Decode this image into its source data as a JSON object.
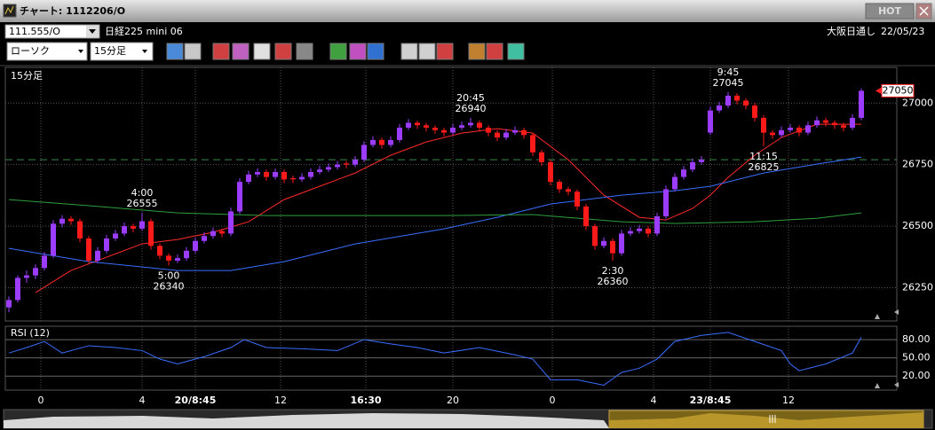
{
  "window": {
    "title": "チャート: 1112206/O",
    "hot_button": "HOT"
  },
  "symbol_bar": {
    "symbol": "111.555/O",
    "name": "日経225 mini 06",
    "session": "大阪日通し",
    "date": "22/05/23"
  },
  "toolbar": {
    "chart_type": "ローソク",
    "timeframe": "15分足"
  },
  "chart": {
    "type": "candlestick",
    "label": "15分足",
    "grid": true,
    "xlim": [
      -0.4,
      100
    ],
    "ylim": [
      26115,
      27145
    ],
    "yticks": [
      27000,
      26750,
      26500,
      26250
    ],
    "xticks": [
      {
        "value": 3.6,
        "label": "0"
      },
      {
        "value": 15,
        "label": "4"
      },
      {
        "value": 21,
        "label": "20/8:45"
      },
      {
        "value": 30.6,
        "label": "12"
      },
      {
        "value": 40.2,
        "label": "16:30"
      },
      {
        "value": 50,
        "label": "20"
      },
      {
        "value": 61.2,
        "label": "0"
      },
      {
        "value": 72.6,
        "label": "4"
      },
      {
        "value": 79,
        "label": "23/8:45"
      },
      {
        "value": 87.8,
        "label": "12"
      }
    ],
    "up_color": "#9b3cff",
    "down_color": "#ff1a1a",
    "candles": [
      [
        26170,
        26215,
        26150,
        26200
      ],
      [
        26200,
        26300,
        26190,
        26290
      ],
      [
        26290,
        26320,
        26270,
        26300
      ],
      [
        26300,
        26345,
        26285,
        26330
      ],
      [
        26330,
        26395,
        26320,
        26380
      ],
      [
        26380,
        26525,
        26370,
        26510
      ],
      [
        26510,
        26545,
        26495,
        26530
      ],
      [
        26530,
        26540,
        26505,
        26520
      ],
      [
        26520,
        26530,
        26435,
        26450
      ],
      [
        26450,
        26460,
        26350,
        26360
      ],
      [
        26360,
        26415,
        26350,
        26400
      ],
      [
        26400,
        26465,
        26390,
        26450
      ],
      [
        26450,
        26485,
        26440,
        26470
      ],
      [
        26470,
        26515,
        26460,
        26500
      ],
      [
        26500,
        26510,
        26475,
        26490
      ],
      [
        26490,
        26555,
        26480,
        26520
      ],
      [
        26520,
        26530,
        26405,
        26420
      ],
      [
        26420,
        26430,
        26365,
        26380
      ],
      [
        26380,
        26390,
        26340,
        26360
      ],
      [
        26360,
        26385,
        26350,
        26370
      ],
      [
        26370,
        26415,
        26360,
        26400
      ],
      [
        26400,
        26455,
        26390,
        26440
      ],
      [
        26440,
        26475,
        26430,
        26460
      ],
      [
        26460,
        26495,
        26450,
        26480
      ],
      [
        26480,
        26490,
        26455,
        26470
      ],
      [
        26470,
        26575,
        26460,
        26560
      ],
      [
        26560,
        26695,
        26550,
        26680
      ],
      [
        26680,
        26725,
        26670,
        26710
      ],
      [
        26710,
        26735,
        26700,
        26720
      ],
      [
        26720,
        26730,
        26685,
        26700
      ],
      [
        26700,
        26735,
        26690,
        26720
      ],
      [
        26720,
        26730,
        26675,
        26690
      ],
      [
        26695,
        26705,
        26675,
        26690
      ],
      [
        26690,
        26715,
        26680,
        26700
      ],
      [
        26700,
        26735,
        26690,
        26720
      ],
      [
        26720,
        26745,
        26710,
        26730
      ],
      [
        26730,
        26755,
        26720,
        26740
      ],
      [
        26740,
        26765,
        26730,
        26750
      ],
      [
        26755,
        26765,
        26735,
        26750
      ],
      [
        26750,
        26785,
        26740,
        26770
      ],
      [
        26770,
        26845,
        26760,
        26830
      ],
      [
        26830,
        26865,
        26820,
        26850
      ],
      [
        26850,
        26860,
        26815,
        26830
      ],
      [
        26830,
        26865,
        26820,
        26850
      ],
      [
        26850,
        26915,
        26840,
        26900
      ],
      [
        26900,
        26935,
        26890,
        26920
      ],
      [
        26920,
        26930,
        26895,
        26910
      ],
      [
        26910,
        26920,
        26885,
        26900
      ],
      [
        26900,
        26910,
        26875,
        26890
      ],
      [
        26890,
        26900,
        26865,
        26880
      ],
      [
        26880,
        26915,
        26870,
        26900
      ],
      [
        26900,
        26925,
        26890,
        26910
      ],
      [
        26910,
        26940,
        26900,
        26920
      ],
      [
        26920,
        26930,
        26885,
        26900
      ],
      [
        26900,
        26910,
        26865,
        26880
      ],
      [
        26880,
        26890,
        26845,
        26860
      ],
      [
        26860,
        26895,
        26850,
        26880
      ],
      [
        26880,
        26905,
        26870,
        26890
      ],
      [
        26890,
        26900,
        26855,
        26870
      ],
      [
        26870,
        26880,
        26785,
        26800
      ],
      [
        26800,
        26810,
        26745,
        26760
      ],
      [
        26760,
        26770,
        26665,
        26680
      ],
      [
        26680,
        26690,
        26635,
        26650
      ],
      [
        26650,
        26660,
        26625,
        26640
      ],
      [
        26640,
        26650,
        26565,
        26580
      ],
      [
        26580,
        26590,
        26485,
        26500
      ],
      [
        26500,
        26510,
        26405,
        26420
      ],
      [
        26420,
        26455,
        26410,
        26440
      ],
      [
        26440,
        26450,
        26360,
        26390
      ],
      [
        26390,
        26485,
        26380,
        26470
      ],
      [
        26470,
        26495,
        26460,
        26480
      ],
      [
        26480,
        26505,
        26470,
        26490
      ],
      [
        26490,
        26500,
        26455,
        26470
      ],
      [
        26470,
        26555,
        26460,
        26540
      ],
      [
        26540,
        26665,
        26530,
        26650
      ],
      [
        26650,
        26715,
        26640,
        26700
      ],
      [
        26700,
        26745,
        26690,
        26730
      ],
      [
        26730,
        26775,
        26720,
        26760
      ],
      [
        26760,
        26785,
        26750,
        26770
      ],
      [
        26880,
        26985,
        26870,
        26970
      ],
      [
        26970,
        27005,
        26960,
        26990
      ],
      [
        26990,
        27045,
        26980,
        27030
      ],
      [
        27030,
        27040,
        26995,
        27010
      ],
      [
        27010,
        27020,
        26975,
        26990
      ],
      [
        26990,
        27000,
        26925,
        26940
      ],
      [
        26940,
        26950,
        26825,
        26880
      ],
      [
        26880,
        26890,
        26855,
        26870
      ],
      [
        26870,
        26905,
        26860,
        26890
      ],
      [
        26890,
        26915,
        26880,
        26900
      ],
      [
        26900,
        26910,
        26865,
        26880
      ],
      [
        26880,
        26925,
        26870,
        26910
      ],
      [
        26910,
        26945,
        26900,
        26930
      ],
      [
        26930,
        26940,
        26905,
        26920
      ],
      [
        26920,
        26930,
        26895,
        26910
      ],
      [
        26910,
        26920,
        26885,
        26900
      ],
      [
        26900,
        26955,
        26890,
        26940
      ],
      [
        26940,
        27060,
        26930,
        27050
      ]
    ],
    "moving_averages": [
      {
        "color": "#ff2a2a",
        "x": [
          3,
          7,
          11,
          15,
          19,
          23,
          27,
          31,
          35,
          39,
          43,
          47,
          51,
          55,
          59,
          63,
          67,
          71,
          74,
          77,
          79,
          81,
          84,
          87,
          91,
          95,
          96
        ],
        "values": [
          26230,
          26320,
          26374,
          26428,
          26446,
          26475,
          26518,
          26608,
          26662,
          26716,
          26788,
          26842,
          26878,
          26896,
          26878,
          26770,
          26626,
          26536,
          26525,
          26572,
          26626,
          26698,
          26788,
          26860,
          26914,
          26914,
          26914
        ]
      },
      {
        "color": "#3a6fff",
        "x": [
          0,
          9,
          19,
          25,
          31,
          39,
          49,
          55,
          61,
          69,
          75,
          79,
          85,
          91,
          96
        ],
        "values": [
          26410,
          26356,
          26320,
          26320,
          26356,
          26428,
          26489,
          26536,
          26590,
          26626,
          26644,
          26662,
          26716,
          26752,
          26781
        ]
      },
      {
        "color": "#2e9e3e",
        "x": [
          0,
          9,
          19,
          29,
          39,
          49,
          59,
          69,
          75,
          84,
          91,
          96
        ],
        "values": [
          26608,
          26583,
          26554,
          26543,
          26543,
          26543,
          26547,
          26518,
          26511,
          26518,
          26532,
          26554
        ]
      }
    ],
    "reference_line": 26770,
    "current_price": 27050,
    "annotations": [
      {
        "time": "4:00",
        "value": 26555,
        "x": 15
      },
      {
        "time": "5:00",
        "value": 26340,
        "x": 18
      },
      {
        "time": "20:45",
        "value": 26940,
        "x": 52
      },
      {
        "time": "2:30",
        "value": 26360,
        "x": 68
      },
      {
        "time": "9:45",
        "value": 27045,
        "x": 81
      },
      {
        "time": "11:15",
        "value": 26825,
        "x": 85
      }
    ]
  },
  "rsi": {
    "type": "line",
    "label": "RSI (12)",
    "color": "#3a6fff",
    "xlim": [
      -0.4,
      100
    ],
    "ylim": [
      -3,
      102
    ],
    "yticks": [
      {
        "value": 80,
        "label": "80.00"
      },
      {
        "value": 50,
        "label": "50.00"
      },
      {
        "value": 20,
        "label": "20.00"
      }
    ],
    "x": [
      0,
      2,
      4,
      6,
      9,
      12,
      15,
      17,
      19,
      22,
      25,
      26.5,
      29,
      33,
      37,
      40,
      43,
      46,
      49,
      53,
      57,
      59,
      61,
      64,
      67,
      69,
      71,
      73,
      75,
      78,
      81,
      84,
      87,
      88,
      89,
      92,
      95,
      96
    ],
    "values": [
      58,
      67,
      77,
      58,
      70,
      67,
      62,
      48,
      40,
      52,
      67,
      80,
      67,
      65,
      62,
      80,
      73,
      67,
      58,
      67,
      55,
      48,
      14,
      14,
      5,
      26,
      33,
      48,
      77,
      87,
      92,
      77,
      62,
      40,
      29,
      40,
      58,
      84
    ]
  }
}
